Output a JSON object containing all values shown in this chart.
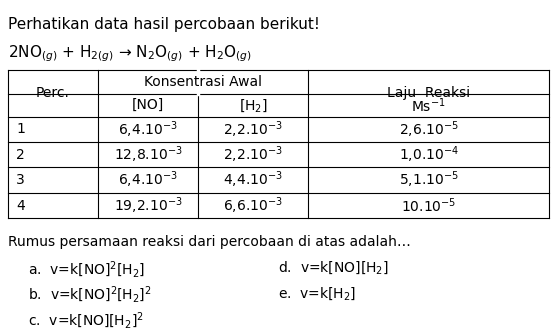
{
  "title_line1": "Perhatikan data hasil percobaan berikut!",
  "reaction": "2NO$_{(g)}$ + H$_{2(g)}$ → N$_2$O$_{(g)}$ + H$_2$O$_{(g)}$",
  "table": {
    "col_headers_row1": [
      "Perc.",
      "Konsentrasi Awal",
      "",
      "Laju  Reaksi"
    ],
    "col_headers_row2": [
      "",
      "[NO]",
      "[H$_2$]",
      "Ms$^{-1}$"
    ],
    "rows": [
      [
        "1",
        "6,4.10$^{-3}$",
        "2,2.10$^{-3}$",
        "2,6.10$^{-5}$"
      ],
      [
        "2",
        "12,8.10$^{-3}$",
        "2,2.10$^{-3}$",
        "1,0.10$^{-4}$"
      ],
      [
        "3",
        "6,4.10$^{-3}$",
        "4,4.10$^{-3}$",
        "5,1.10$^{-5}$"
      ],
      [
        "4",
        "19,2.10$^{-3}$",
        "6,6.10$^{-3}$",
        "10.10$^{-5}$"
      ]
    ]
  },
  "footer_text": "Rumus persamaan reaksi dari percobaan di atas adalah…",
  "options": [
    [
      "a.  v=k[NO]$^2$[H$_2$]",
      "d.  v=k[NO][H$_2$]"
    ],
    [
      "b.  v=k[NO]$^2$[H$_2$]$^2$",
      "e.  v=k[H$_2$]"
    ],
    [
      "c.  v=k[NO][H$_2$]$^2$",
      ""
    ]
  ],
  "bg_color": "#ffffff",
  "text_color": "#000000",
  "font_size": 10,
  "table_font_size": 10
}
